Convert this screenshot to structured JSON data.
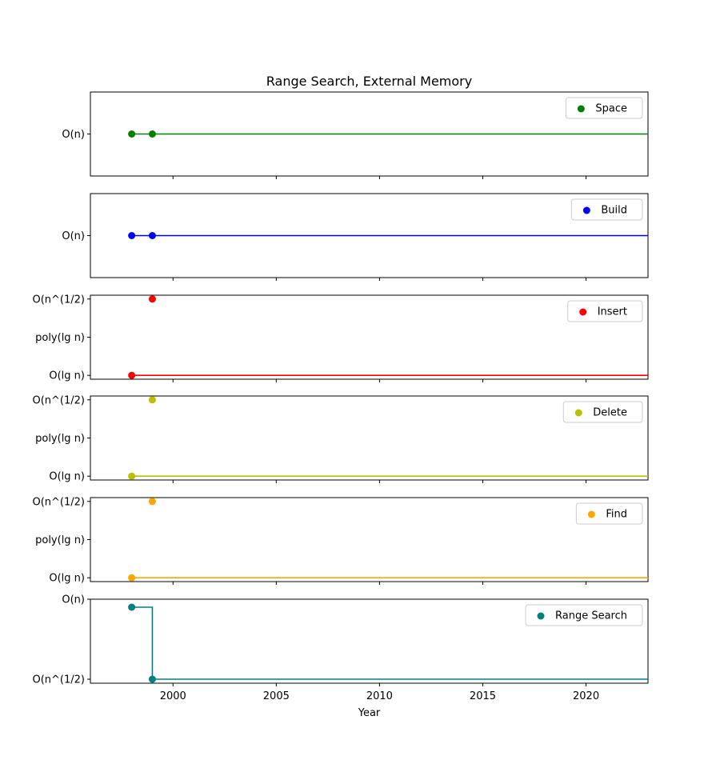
{
  "chart_data": {
    "type": "line",
    "title": "Range Search, External Memory",
    "xlabel": "Year",
    "xlim": [
      1996,
      2023
    ],
    "x_ticks": [
      2000,
      2005,
      2010,
      2015,
      2020
    ],
    "x_tick_labels": [
      "2000",
      "2005",
      "2010",
      "2015",
      "2020"
    ],
    "step_line": true,
    "panels": [
      {
        "series": "Space",
        "color": "#008000",
        "y_levels": [
          "O(n)"
        ],
        "ylim": [
          -1,
          1
        ],
        "points": [
          {
            "x": 1998,
            "y": "O(n)"
          },
          {
            "x": 1999,
            "y": "O(n)"
          }
        ],
        "legend_position": "upper right"
      },
      {
        "series": "Build",
        "color": "#0000ff",
        "y_levels": [
          "O(n)"
        ],
        "ylim": [
          -1,
          1
        ],
        "points": [
          {
            "x": 1998,
            "y": "O(n)"
          },
          {
            "x": 1999,
            "y": "O(n)"
          }
        ],
        "legend_position": "upper right"
      },
      {
        "series": "Insert",
        "color": "#ff0000",
        "y_levels": [
          "O(lg n)",
          "poly(lg n)",
          "O(n^(1/2)"
        ],
        "ylim": [
          -0.1,
          2.1
        ],
        "points": [
          {
            "x": 1998,
            "y": "O(lg n)"
          },
          {
            "x": 1999,
            "y": "O(n^(1/2)"
          }
        ],
        "legend_position": "upper right"
      },
      {
        "series": "Delete",
        "color": "#bfbf00",
        "y_levels": [
          "O(lg n)",
          "poly(lg n)",
          "O(n^(1/2)"
        ],
        "ylim": [
          -0.1,
          2.1
        ],
        "points": [
          {
            "x": 1998,
            "y": "O(lg n)"
          },
          {
            "x": 1999,
            "y": "O(n^(1/2)"
          }
        ],
        "legend_position": "upper right"
      },
      {
        "series": "Find",
        "color": "#ffa500",
        "y_levels": [
          "O(lg n)",
          "poly(lg n)",
          "O(n^(1/2)"
        ],
        "ylim": [
          -0.1,
          2.1
        ],
        "points": [
          {
            "x": 1998,
            "y": "O(lg n)"
          },
          {
            "x": 1999,
            "y": "O(n^(1/2)"
          }
        ],
        "legend_position": "upper right"
      },
      {
        "series": "Range Search",
        "color": "#008080",
        "y_levels": [
          "O(n^(1/2)",
          "O(n)"
        ],
        "ylim": [
          -0.05,
          1.0
        ],
        "points": [
          {
            "x": 1998,
            "y": 0.9
          },
          {
            "x": 1999,
            "y": "O(n^(1/2)"
          }
        ],
        "legend_position": "upper right"
      }
    ]
  }
}
